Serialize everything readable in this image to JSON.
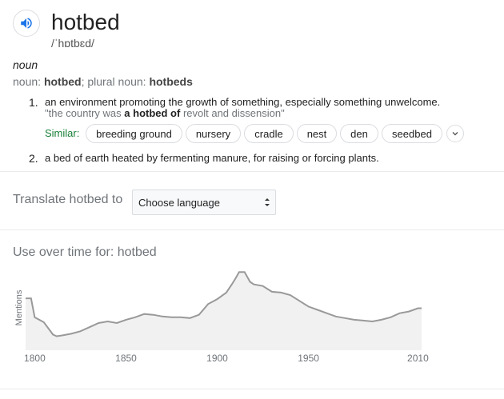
{
  "entry": {
    "word": "hotbed",
    "phonetic": "/ˈhɒtbɛd/",
    "part_of_speech": "noun",
    "forms_prefix": "noun: ",
    "forms_word": "hotbed",
    "forms_mid": "; plural noun: ",
    "forms_plural": "hotbeds"
  },
  "definitions": [
    {
      "number": "1.",
      "text": "an environment promoting the growth of something, especially something unwelcome.",
      "example_pre": "\"the country was ",
      "example_bold": "a hotbed of",
      "example_post": " revolt and dissension\"",
      "similar_label": "Similar:",
      "similar": [
        "breeding ground",
        "nursery",
        "cradle",
        "nest",
        "den",
        "seedbed"
      ]
    },
    {
      "number": "2.",
      "text": "a bed of earth heated by fermenting manure, for raising or forcing plants."
    }
  ],
  "translate": {
    "label": "Translate hotbed to",
    "select_value": "Choose language"
  },
  "usage": {
    "title": "Use over time for: hotbed"
  },
  "icons": {
    "speaker": "speaker-icon",
    "more": "chevron-down-icon",
    "select_arrows": "updown-arrows-icon"
  },
  "colors": {
    "accent": "#1a73e8",
    "similar_label": "#188038",
    "chart_line": "#999999",
    "chart_fill": "#f1f1f1"
  },
  "chart_data": {
    "type": "area",
    "title": "",
    "xlabel": "",
    "ylabel": "Mentions",
    "xlim": [
      1795,
      2012
    ],
    "ylim": [
      0,
      1.0
    ],
    "x_ticks": [
      "1800",
      "1850",
      "1900",
      "1950",
      "2010"
    ],
    "x_tick_values": [
      1800,
      1850,
      1900,
      1950,
      2010
    ],
    "grid": false,
    "series": [
      {
        "x": [
          1795,
          1798,
          1800,
          1805,
          1810,
          1812,
          1815,
          1820,
          1825,
          1830,
          1835,
          1840,
          1845,
          1850,
          1855,
          1860,
          1865,
          1870,
          1875,
          1880,
          1885,
          1890,
          1895,
          1900,
          1905,
          1908,
          1910,
          1912,
          1915,
          1918,
          1920,
          1925,
          1930,
          1935,
          1940,
          1945,
          1950,
          1955,
          1960,
          1965,
          1970,
          1975,
          1980,
          1985,
          1990,
          1995,
          2000,
          2005,
          2010,
          2012
        ],
        "y": [
          0.63,
          0.63,
          0.4,
          0.34,
          0.19,
          0.17,
          0.18,
          0.2,
          0.23,
          0.28,
          0.33,
          0.35,
          0.33,
          0.37,
          0.4,
          0.44,
          0.43,
          0.41,
          0.4,
          0.4,
          0.39,
          0.43,
          0.56,
          0.62,
          0.7,
          0.8,
          0.87,
          0.95,
          0.95,
          0.83,
          0.8,
          0.78,
          0.71,
          0.7,
          0.67,
          0.6,
          0.53,
          0.49,
          0.45,
          0.41,
          0.39,
          0.37,
          0.36,
          0.35,
          0.37,
          0.4,
          0.45,
          0.47,
          0.51,
          0.51
        ]
      }
    ]
  }
}
